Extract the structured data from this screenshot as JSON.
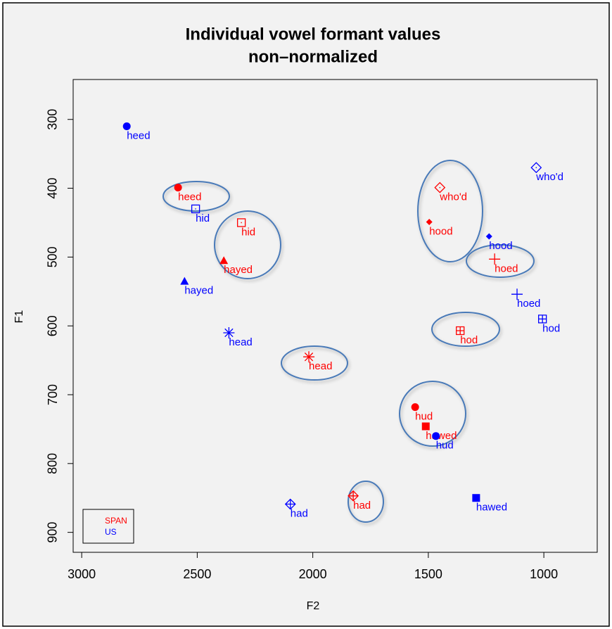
{
  "chart_data": {
    "type": "scatter",
    "title": "Individual vowel formant values",
    "subtitle": "non–normalized",
    "x_label": "F2",
    "y_label": "F1",
    "labels": [
      "heed",
      "hid",
      "hayed",
      "head",
      "had",
      "hud",
      "hawed",
      "hod",
      "hoed",
      "hood",
      "who'd"
    ],
    "markers": [
      "filled-circle",
      "dotted-square",
      "filled-triangle",
      "asterisk",
      "crossed-diamond",
      "filled-circle",
      "filled-square",
      "crossed-square",
      "plus",
      "filled-diamond",
      "dotted-diamond"
    ],
    "series": [
      {
        "name": "SPAN",
        "color": "#ff0000",
        "x": [
          2583,
          2309,
          2385,
          2017,
          1825,
          1557,
          1511,
          1362,
          1213,
          1496,
          1450
        ],
        "values": [
          399,
          450,
          505,
          645,
          847,
          718,
          746,
          607,
          503,
          449,
          399
        ]
      },
      {
        "name": "US",
        "color": "#0000ff",
        "x": [
          2805,
          2507,
          2555,
          2363,
          2097,
          1467,
          1293,
          1006,
          1116,
          1237,
          1033
        ],
        "values": [
          310,
          430,
          535,
          610,
          859,
          760,
          850,
          590,
          554,
          470,
          370
        ]
      }
    ],
    "xlim": [
      3037,
      769
    ],
    "ylim": [
      929,
      242
    ],
    "xticks": [
      3000,
      2500,
      2000,
      1500,
      1000
    ],
    "yticks": [
      300,
      400,
      500,
      600,
      700,
      800,
      900
    ],
    "legend": "bottom-left"
  }
}
